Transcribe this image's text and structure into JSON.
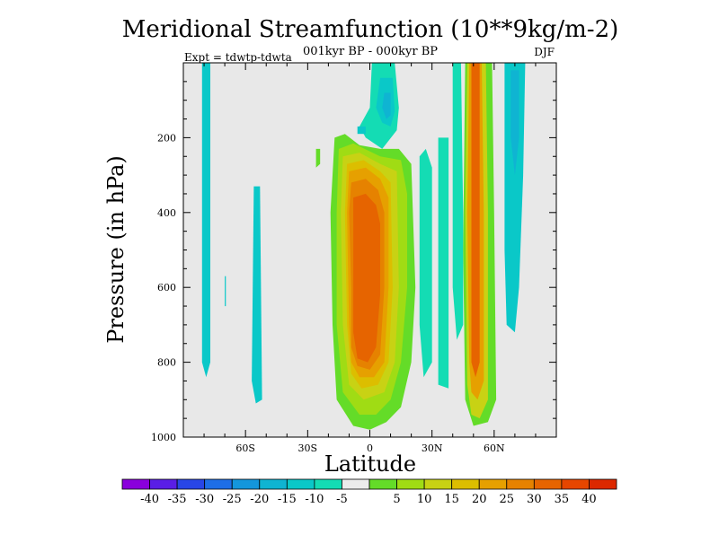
{
  "chart_data": {
    "type": "heatmap",
    "title": "Meridional Streamfunction (10**9kg/m-2)",
    "subtitle": "001kyr BP - 000kyr BP",
    "left_note": "Expt = tdwtp-tdwta",
    "season": "DJF",
    "xlabel": "Latitude",
    "ylabel": "Pressure (in hPa)",
    "xlim": [
      -90,
      90
    ],
    "ylim": [
      1000,
      0
    ],
    "x_ticks": [
      {
        "value": -60,
        "label": "60S"
      },
      {
        "value": -30,
        "label": "30S"
      },
      {
        "value": 0,
        "label": "0"
      },
      {
        "value": 30,
        "label": "30N"
      },
      {
        "value": 60,
        "label": "60N"
      }
    ],
    "y_ticks": [
      {
        "value": 200,
        "label": "200"
      },
      {
        "value": 400,
        "label": "400"
      },
      {
        "value": 600,
        "label": "600"
      },
      {
        "value": 800,
        "label": "800"
      },
      {
        "value": 1000,
        "label": "1000"
      }
    ],
    "background_color": "#e8e8e8",
    "colorbar": {
      "colors": [
        "#8a00dc",
        "#5a1ee6",
        "#2846e6",
        "#1e6ee6",
        "#1496dc",
        "#0fb4d2",
        "#0ac8c8",
        "#14dcb4",
        "#ececec",
        "#64dc28",
        "#a0dc14",
        "#c8d214",
        "#dcbe00",
        "#e6a000",
        "#e68200",
        "#e66400",
        "#e64600",
        "#dc2800"
      ],
      "labels": [
        "-40",
        "-35",
        "-30",
        "-25",
        "-20",
        "-15",
        "-10",
        "-5",
        "5",
        "10",
        "15",
        "20",
        "25",
        "30",
        "35",
        "40"
      ]
    },
    "regions": [
      {
        "id": "sh-negative-cell",
        "level": -10,
        "pts": [
          [
            -81,
            0
          ],
          [
            -77,
            0
          ],
          [
            -77,
            800
          ],
          [
            -79,
            840
          ],
          [
            -81,
            800
          ]
        ]
      },
      {
        "id": "sh-small-negative",
        "level": -10,
        "pts": [
          [
            -56,
            330
          ],
          [
            -53,
            330
          ],
          [
            -52,
            900
          ],
          [
            -55,
            910
          ],
          [
            -57,
            850
          ]
        ]
      },
      {
        "id": "tiny-negative",
        "level": -10,
        "pts": [
          [
            -70,
            570
          ],
          [
            -69.5,
            570
          ],
          [
            -69.5,
            650
          ],
          [
            -70,
            650
          ]
        ]
      },
      {
        "id": "equatorial-positive-outer",
        "level": 5,
        "pts": [
          [
            -17,
            200
          ],
          [
            -12,
            190
          ],
          [
            -5,
            220
          ],
          [
            5,
            230
          ],
          [
            14,
            230
          ],
          [
            20,
            270
          ],
          [
            22,
            600
          ],
          [
            20,
            800
          ],
          [
            15,
            920
          ],
          [
            8,
            960
          ],
          [
            0,
            980
          ],
          [
            -8,
            970
          ],
          [
            -16,
            900
          ],
          [
            -18,
            700
          ],
          [
            -19,
            400
          ]
        ]
      },
      {
        "id": "left-sliver",
        "level": 5,
        "pts": [
          [
            -26,
            230
          ],
          [
            -24,
            230
          ],
          [
            -24,
            270
          ],
          [
            -26,
            280
          ]
        ]
      },
      {
        "id": "equatorial-positive-10",
        "level": 10,
        "pts": [
          [
            -15,
            230
          ],
          [
            -8,
            215
          ],
          [
            5,
            250
          ],
          [
            15,
            260
          ],
          [
            18,
            350
          ],
          [
            18,
            600
          ],
          [
            15,
            800
          ],
          [
            10,
            900
          ],
          [
            3,
            940
          ],
          [
            -5,
            940
          ],
          [
            -13,
            880
          ],
          [
            -16,
            700
          ],
          [
            -16,
            400
          ]
        ]
      },
      {
        "id": "equatorial-positive-15",
        "level": 15,
        "pts": [
          [
            -13,
            250
          ],
          [
            -5,
            240
          ],
          [
            5,
            270
          ],
          [
            13,
            290
          ],
          [
            14,
            600
          ],
          [
            12,
            800
          ],
          [
            7,
            880
          ],
          [
            -3,
            900
          ],
          [
            -10,
            860
          ],
          [
            -13,
            700
          ],
          [
            -14,
            400
          ]
        ]
      },
      {
        "id": "equatorial-positive-20",
        "level": 20,
        "pts": [
          [
            -11,
            270
          ],
          [
            -3,
            260
          ],
          [
            5,
            290
          ],
          [
            10,
            320
          ],
          [
            11,
            600
          ],
          [
            9,
            800
          ],
          [
            4,
            860
          ],
          [
            -4,
            870
          ],
          [
            -9,
            830
          ],
          [
            -11,
            700
          ],
          [
            -12,
            400
          ]
        ]
      },
      {
        "id": "equatorial-positive-25",
        "level": 25,
        "pts": [
          [
            -10,
            290
          ],
          [
            -2,
            280
          ],
          [
            5,
            310
          ],
          [
            9,
            360
          ],
          [
            9,
            600
          ],
          [
            7,
            800
          ],
          [
            2,
            840
          ],
          [
            -5,
            840
          ],
          [
            -9,
            800
          ],
          [
            -10,
            700
          ],
          [
            -11,
            400
          ]
        ]
      },
      {
        "id": "equatorial-positive-30",
        "level": 30,
        "pts": [
          [
            -9,
            320
          ],
          [
            -2,
            310
          ],
          [
            4,
            340
          ],
          [
            7,
            400
          ],
          [
            7,
            600
          ],
          [
            5,
            780
          ],
          [
            0,
            820
          ],
          [
            -6,
            810
          ],
          [
            -9,
            760
          ],
          [
            -9,
            600
          ],
          [
            -10,
            400
          ]
        ]
      },
      {
        "id": "equatorial-positive-35",
        "level": 35,
        "pts": [
          [
            -8,
            360
          ],
          [
            -2,
            350
          ],
          [
            3,
            380
          ],
          [
            5,
            430
          ],
          [
            5,
            620
          ],
          [
            3,
            760
          ],
          [
            -1,
            800
          ],
          [
            -6,
            790
          ],
          [
            -8,
            720
          ],
          [
            -8,
            560
          ]
        ]
      },
      {
        "id": "upper-negative",
        "level": -5,
        "pts": [
          [
            1,
            0
          ],
          [
            12,
            0
          ],
          [
            14,
            120
          ],
          [
            13,
            180
          ],
          [
            6,
            230
          ],
          [
            -2,
            200
          ],
          [
            -5,
            170
          ],
          [
            0,
            120
          ]
        ]
      },
      {
        "id": "upper-negative-inner",
        "level": -10,
        "pts": [
          [
            5,
            40
          ],
          [
            11,
            40
          ],
          [
            12,
            130
          ],
          [
            10,
            170
          ],
          [
            6,
            160
          ],
          [
            3,
            120
          ]
        ]
      },
      {
        "id": "upper-negative-core",
        "level": -15,
        "pts": [
          [
            7,
            80
          ],
          [
            10,
            80
          ],
          [
            10,
            140
          ],
          [
            8,
            150
          ],
          [
            6,
            120
          ]
        ]
      },
      {
        "id": "small-negative-left",
        "level": -10,
        "pts": [
          [
            -6,
            170
          ],
          [
            -2,
            170
          ],
          [
            -2,
            190
          ],
          [
            -6,
            190
          ]
        ]
      },
      {
        "id": "nh-negative-band-1",
        "level": -5,
        "pts": [
          [
            24,
            250
          ],
          [
            27,
            230
          ],
          [
            30,
            280
          ],
          [
            30,
            800
          ],
          [
            26,
            840
          ],
          [
            24,
            700
          ]
        ]
      },
      {
        "id": "nh-negative-band-2",
        "level": -5,
        "pts": [
          [
            33,
            200
          ],
          [
            38,
            200
          ],
          [
            38,
            870
          ],
          [
            33,
            860
          ]
        ]
      },
      {
        "id": "nh-mid-negative",
        "level": -5,
        "pts": [
          [
            40,
            0
          ],
          [
            44,
            0
          ],
          [
            45,
            400
          ],
          [
            45,
            700
          ],
          [
            42,
            740
          ],
          [
            40,
            600
          ]
        ]
      },
      {
        "id": "nh-positive-outer",
        "level": 5,
        "pts": [
          [
            46,
            0
          ],
          [
            59,
            0
          ],
          [
            60,
            400
          ],
          [
            61,
            900
          ],
          [
            57,
            960
          ],
          [
            50,
            970
          ],
          [
            46,
            900
          ],
          [
            45,
            500
          ]
        ]
      },
      {
        "id": "nh-positive-15",
        "level": 15,
        "pts": [
          [
            47,
            0
          ],
          [
            56,
            0
          ],
          [
            57,
            400
          ],
          [
            57,
            900
          ],
          [
            53,
            950
          ],
          [
            49,
            940
          ],
          [
            47,
            860
          ],
          [
            46,
            400
          ]
        ]
      },
      {
        "id": "nh-positive-25",
        "level": 25,
        "pts": [
          [
            48,
            0
          ],
          [
            54,
            0
          ],
          [
            55,
            400
          ],
          [
            55,
            850
          ],
          [
            52,
            900
          ],
          [
            49,
            880
          ],
          [
            48,
            800
          ],
          [
            47,
            400
          ]
        ]
      },
      {
        "id": "nh-positive-35",
        "level": 35,
        "pts": [
          [
            49,
            0
          ],
          [
            53,
            0
          ],
          [
            53,
            400
          ],
          [
            53,
            800
          ],
          [
            51,
            840
          ],
          [
            49,
            800
          ]
        ]
      },
      {
        "id": "nh-negative-right",
        "level": -10,
        "pts": [
          [
            65,
            0
          ],
          [
            75,
            0
          ],
          [
            74,
            300
          ],
          [
            72,
            600
          ],
          [
            70,
            720
          ],
          [
            66,
            700
          ],
          [
            65,
            500
          ]
        ]
      },
      {
        "id": "nh-negative-right-inner",
        "level": -15,
        "pts": [
          [
            68,
            20
          ],
          [
            72,
            20
          ],
          [
            72,
            200
          ],
          [
            70,
            300
          ],
          [
            68,
            200
          ]
        ]
      }
    ]
  }
}
